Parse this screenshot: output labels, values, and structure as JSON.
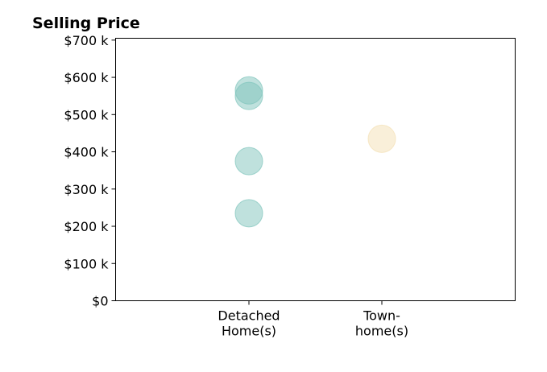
{
  "chart_data": {
    "type": "scatter",
    "title": "Selling Price",
    "xlabel": "",
    "ylabel": "",
    "categories": [
      [
        "Detached",
        "Home(s)"
      ],
      [
        "Town-",
        "home(s)"
      ]
    ],
    "ylim": [
      0,
      705000
    ],
    "y_ticks": [
      0,
      100000,
      200000,
      300000,
      400000,
      500000,
      600000,
      700000
    ],
    "y_tick_labels": [
      "$0",
      "$100 k",
      "$200 k",
      "$300 k",
      "$400 k",
      "$500 k",
      "$600 k",
      "$700 k"
    ],
    "grid": false,
    "series": [
      {
        "category": 0,
        "color": "#7fc4bc",
        "values": [
          565000,
          550000,
          375000,
          235000
        ]
      },
      {
        "category": 1,
        "color": "#f3dfb3",
        "values": [
          435000
        ]
      }
    ]
  }
}
